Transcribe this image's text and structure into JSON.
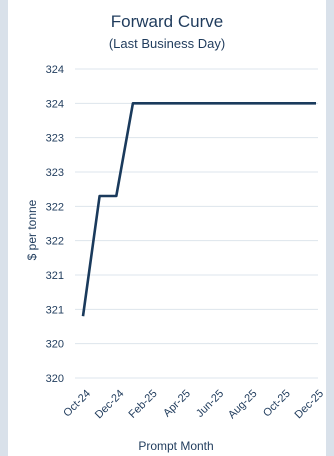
{
  "chart_data": {
    "type": "line",
    "title": "Forward Curve",
    "subtitle": "(Last Business Day)",
    "xlabel": "Prompt Month",
    "ylabel": "$ per tonne",
    "grid": true,
    "legend": "none",
    "line_color": "#1a3a5c",
    "x_tick_labels": [
      "Oct-24",
      "Dec-24",
      "Feb-25",
      "Apr-25",
      "Jun-25",
      "Aug-25",
      "Oct-25",
      "Dec-25"
    ],
    "y_tick_labels": [
      "320",
      "320",
      "321",
      "321",
      "322",
      "322",
      "323",
      "323",
      "324",
      "324"
    ],
    "ylim": [
      320,
      324.5
    ],
    "x": [
      "Oct-24",
      "Nov-24",
      "Dec-24",
      "Jan-25",
      "Feb-25",
      "Mar-25",
      "Apr-25",
      "May-25",
      "Jun-25",
      "Jul-25",
      "Aug-25",
      "Sep-25",
      "Oct-25",
      "Nov-25",
      "Dec-25"
    ],
    "series": [
      {
        "values": [
          320.9,
          322.65,
          322.65,
          324.0,
          324.0,
          324.0,
          324.0,
          324.0,
          324.0,
          324.0,
          324.0,
          324.0,
          324.0,
          324.0,
          324.0
        ]
      }
    ]
  }
}
